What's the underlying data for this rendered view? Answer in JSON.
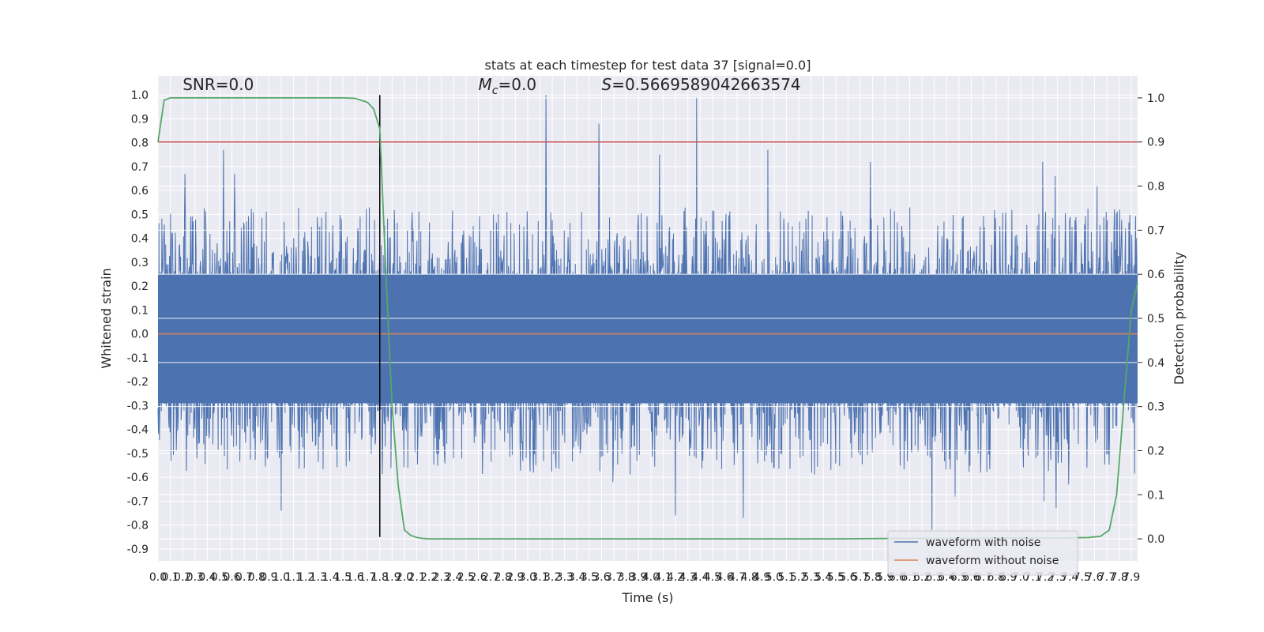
{
  "chart_data": {
    "type": "line",
    "title": "stats at each timestep for test data 37 [signal=0.0]",
    "xlabel": "Time (s)",
    "ylabel_left": "Whitened strain",
    "ylabel_right": "Detection probability",
    "xlim": [
      0.0,
      7.95
    ],
    "ylim_left": [
      -0.95,
      1.08
    ],
    "ylim_right": [
      -0.05,
      1.05
    ],
    "x_ticks": [
      "0.0",
      "0.1",
      "0.2",
      "0.3",
      "0.4",
      "0.5",
      "0.6",
      "0.7",
      "0.8",
      "0.9",
      "1.0",
      "1.1",
      "1.2",
      "1.3",
      "1.4",
      "1.5",
      "1.6",
      "1.7",
      "1.8",
      "1.9",
      "2.0",
      "2.1",
      "2.2",
      "2.3",
      "2.4",
      "2.5",
      "2.6",
      "2.7",
      "2.8",
      "2.9",
      "3.0",
      "3.1",
      "3.2",
      "3.3",
      "3.4",
      "3.5",
      "3.6",
      "3.7",
      "3.8",
      "3.9",
      "4.0",
      "4.1",
      "4.2",
      "4.3",
      "4.4",
      "4.5",
      "4.6",
      "4.7",
      "4.8",
      "4.9",
      "5.0",
      "5.1",
      "5.2",
      "5.3",
      "5.4",
      "5.5",
      "5.6",
      "5.7",
      "5.8",
      "5.9",
      "6.0",
      "6.1",
      "6.2",
      "6.3",
      "6.4",
      "6.5",
      "6.6",
      "6.7",
      "6.8",
      "6.9",
      "7.0",
      "7.1",
      "7.2",
      "7.3",
      "7.4",
      "7.5",
      "7.6",
      "7.7",
      "7.8",
      "7.9"
    ],
    "y_ticks_left": [
      "-0.9",
      "-0.8",
      "-0.7",
      "-0.6",
      "-0.5",
      "-0.4",
      "-0.3",
      "-0.2",
      "-0.1",
      "0.0",
      "0.1",
      "0.2",
      "0.3",
      "0.4",
      "0.5",
      "0.6",
      "0.7",
      "0.8",
      "0.9",
      "1.0"
    ],
    "y_ticks_right": [
      "0.0",
      "0.1",
      "0.2",
      "0.3",
      "0.4",
      "0.5",
      "0.6",
      "0.7",
      "0.8",
      "0.9",
      "1.0"
    ],
    "annotations": [
      {
        "text": "SNR=0.0",
        "x": 0.2,
        "y": 1.02
      },
      {
        "prefix": "M",
        "subscript": "c",
        "suffix": "=0.0",
        "x": 2.6,
        "y": 1.02
      },
      {
        "prefix": "S",
        "subscript": "",
        "suffix": "=0.5669589042663574",
        "x": 3.6,
        "y": 1.02
      }
    ],
    "threshold": {
      "axis": "right",
      "value": 0.9,
      "color": "#c44e52"
    },
    "vline": {
      "x": 1.8,
      "y_from": -0.85,
      "y_to": 1.0,
      "color": "#000000"
    },
    "grid": true,
    "legend_position": "lower-right",
    "series": [
      {
        "name": "waveform with noise",
        "axis": "left",
        "color": "#4c72b0",
        "kind": "noise",
        "sample_rate": 256,
        "envelope_pos": 0.25,
        "envelope_neg": -0.29,
        "peaks": [
          {
            "x": 0.22,
            "y": 0.67
          },
          {
            "x": 0.53,
            "y": 0.77
          },
          {
            "x": 0.62,
            "y": 0.67
          },
          {
            "x": 3.15,
            "y": 1.0
          },
          {
            "x": 3.58,
            "y": 0.88
          },
          {
            "x": 4.07,
            "y": 0.75
          },
          {
            "x": 4.37,
            "y": 0.99
          },
          {
            "x": 4.95,
            "y": 0.77
          },
          {
            "x": 5.78,
            "y": 0.72
          },
          {
            "x": 7.18,
            "y": 0.72
          },
          {
            "x": 7.28,
            "y": 0.66
          },
          {
            "x": 7.62,
            "y": 0.62
          },
          {
            "x": 1.0,
            "y": -0.74
          },
          {
            "x": 3.69,
            "y": -0.62
          },
          {
            "x": 4.2,
            "y": -0.76
          },
          {
            "x": 4.75,
            "y": -0.77
          },
          {
            "x": 6.28,
            "y": -0.82
          },
          {
            "x": 6.47,
            "y": -0.68
          },
          {
            "x": 7.19,
            "y": -0.7
          },
          {
            "x": 7.29,
            "y": -0.73
          },
          {
            "x": 7.39,
            "y": -0.63
          }
        ]
      },
      {
        "name": "waveform without noise",
        "axis": "left",
        "color": "#dd8452",
        "x": [
          0.0,
          7.95
        ],
        "y": [
          0.0,
          0.0
        ]
      },
      {
        "name": "",
        "axis": "right",
        "color": "#55a868",
        "x": [
          0.0,
          0.05,
          0.1,
          0.2,
          0.4,
          0.8,
          1.2,
          1.5,
          1.6,
          1.7,
          1.75,
          1.8,
          1.85,
          1.9,
          1.95,
          2.0,
          2.05,
          2.1,
          2.15,
          2.2,
          2.3,
          2.6,
          3.5,
          4.5,
          5.5,
          6.0,
          6.5,
          7.0,
          7.2,
          7.35,
          7.55,
          7.65,
          7.72,
          7.78,
          7.85,
          7.9,
          7.95
        ],
        "y": [
          0.9,
          0.995,
          1.0,
          1.0,
          1.0,
          1.0,
          1.0,
          1.0,
          0.999,
          0.99,
          0.975,
          0.93,
          0.6,
          0.3,
          0.12,
          0.02,
          0.008,
          0.003,
          0.001,
          0.0,
          0.0,
          0.0,
          0.0,
          0.0,
          0.0,
          0.001,
          0.001,
          0.002,
          0.002,
          0.002,
          0.003,
          0.006,
          0.02,
          0.1,
          0.35,
          0.52,
          0.58
        ]
      }
    ]
  }
}
